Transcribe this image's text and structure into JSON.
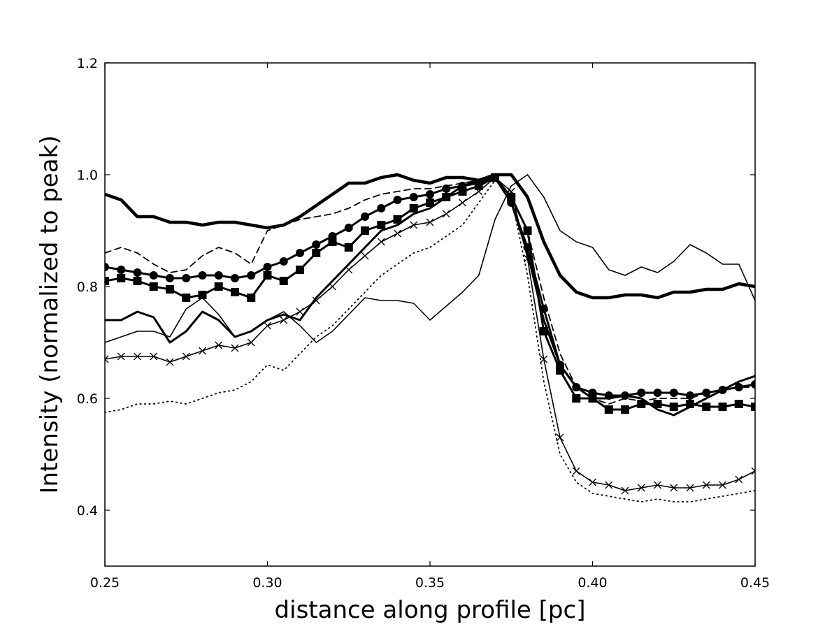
{
  "chart_data": {
    "type": "line",
    "title": "",
    "xlabel": "distance along profile [pc]",
    "ylabel": "Intensity (normalized to peak)",
    "xlim": [
      0.25,
      0.45
    ],
    "ylim": [
      0.3,
      1.2
    ],
    "xticks": [
      "0.25",
      "0.30",
      "0.35",
      "0.40",
      "0.45"
    ],
    "yticks": [
      "0.4",
      "0.6",
      "0.8",
      "1.0",
      "1.2"
    ],
    "grid": false,
    "legend": "none",
    "colors": {
      "line": "#000000",
      "background": "#ffffff"
    },
    "series": [
      {
        "style": "thick-solid",
        "x": [
          0.25,
          0.255,
          0.26,
          0.265,
          0.27,
          0.275,
          0.28,
          0.285,
          0.29,
          0.295,
          0.3,
          0.305,
          0.31,
          0.315,
          0.32,
          0.325,
          0.33,
          0.335,
          0.34,
          0.345,
          0.35,
          0.355,
          0.36,
          0.365,
          0.37,
          0.375,
          0.38,
          0.385,
          0.39,
          0.395,
          0.4,
          0.405,
          0.41,
          0.415,
          0.42,
          0.425,
          0.43,
          0.435,
          0.44,
          0.445,
          0.45
        ],
        "y": [
          0.965,
          0.955,
          0.925,
          0.925,
          0.915,
          0.915,
          0.91,
          0.915,
          0.915,
          0.91,
          0.905,
          0.91,
          0.925,
          0.945,
          0.965,
          0.985,
          0.985,
          0.995,
          1.0,
          0.99,
          0.985,
          0.995,
          0.995,
          0.99,
          1.0,
          1.0,
          0.96,
          0.88,
          0.82,
          0.79,
          0.78,
          0.78,
          0.785,
          0.785,
          0.78,
          0.79,
          0.79,
          0.795,
          0.795,
          0.805,
          0.8
        ]
      },
      {
        "style": "dashed",
        "x": [
          0.25,
          0.255,
          0.26,
          0.265,
          0.27,
          0.275,
          0.28,
          0.285,
          0.29,
          0.295,
          0.3,
          0.305,
          0.31,
          0.315,
          0.32,
          0.325,
          0.33,
          0.335,
          0.34,
          0.345,
          0.35,
          0.355,
          0.36,
          0.365,
          0.37,
          0.375,
          0.38,
          0.385,
          0.39,
          0.395,
          0.4,
          0.405,
          0.41,
          0.415,
          0.42,
          0.425,
          0.43,
          0.435,
          0.44,
          0.445,
          0.45
        ],
        "y": [
          0.86,
          0.87,
          0.86,
          0.84,
          0.825,
          0.83,
          0.855,
          0.87,
          0.86,
          0.84,
          0.9,
          0.91,
          0.92,
          0.925,
          0.93,
          0.94,
          0.955,
          0.965,
          0.97,
          0.975,
          0.975,
          0.98,
          0.985,
          0.99,
          0.995,
          0.96,
          0.9,
          0.78,
          0.68,
          0.62,
          0.6,
          0.59,
          0.6,
          0.595,
          0.6,
          0.6,
          0.6,
          0.61,
          0.615,
          0.62,
          0.62
        ]
      },
      {
        "style": "circle-markers",
        "x": [
          0.25,
          0.255,
          0.26,
          0.265,
          0.27,
          0.275,
          0.28,
          0.285,
          0.29,
          0.295,
          0.3,
          0.305,
          0.31,
          0.315,
          0.32,
          0.325,
          0.33,
          0.335,
          0.34,
          0.345,
          0.35,
          0.355,
          0.36,
          0.365,
          0.37,
          0.375,
          0.38,
          0.385,
          0.39,
          0.395,
          0.4,
          0.405,
          0.41,
          0.415,
          0.42,
          0.425,
          0.43,
          0.435,
          0.44,
          0.445,
          0.45
        ],
        "y": [
          0.835,
          0.83,
          0.825,
          0.82,
          0.815,
          0.815,
          0.82,
          0.82,
          0.815,
          0.82,
          0.835,
          0.845,
          0.86,
          0.875,
          0.89,
          0.905,
          0.925,
          0.94,
          0.955,
          0.96,
          0.965,
          0.975,
          0.98,
          0.985,
          0.995,
          0.95,
          0.87,
          0.76,
          0.66,
          0.62,
          0.61,
          0.605,
          0.605,
          0.61,
          0.61,
          0.61,
          0.605,
          0.61,
          0.615,
          0.62,
          0.625
        ]
      },
      {
        "style": "square-markers",
        "x": [
          0.25,
          0.255,
          0.26,
          0.265,
          0.27,
          0.275,
          0.28,
          0.285,
          0.29,
          0.295,
          0.3,
          0.305,
          0.31,
          0.315,
          0.32,
          0.325,
          0.33,
          0.335,
          0.34,
          0.345,
          0.35,
          0.355,
          0.36,
          0.365,
          0.37,
          0.375,
          0.38,
          0.385,
          0.39,
          0.395,
          0.4,
          0.405,
          0.41,
          0.415,
          0.42,
          0.425,
          0.43,
          0.435,
          0.44,
          0.445,
          0.45
        ],
        "y": [
          0.81,
          0.815,
          0.81,
          0.8,
          0.795,
          0.78,
          0.785,
          0.8,
          0.79,
          0.78,
          0.82,
          0.81,
          0.83,
          0.86,
          0.88,
          0.87,
          0.9,
          0.91,
          0.92,
          0.94,
          0.95,
          0.96,
          0.97,
          0.98,
          0.995,
          0.96,
          0.9,
          0.72,
          0.65,
          0.6,
          0.6,
          0.58,
          0.58,
          0.59,
          0.59,
          0.585,
          0.59,
          0.585,
          0.585,
          0.59,
          0.585
        ]
      },
      {
        "style": "medium-solid",
        "x": [
          0.25,
          0.255,
          0.26,
          0.265,
          0.27,
          0.275,
          0.28,
          0.285,
          0.29,
          0.295,
          0.3,
          0.305,
          0.31,
          0.315,
          0.32,
          0.325,
          0.33,
          0.335,
          0.34,
          0.345,
          0.35,
          0.355,
          0.36,
          0.365,
          0.37,
          0.375,
          0.38,
          0.385,
          0.39,
          0.395,
          0.4,
          0.405,
          0.41,
          0.415,
          0.42,
          0.425,
          0.43,
          0.435,
          0.44,
          0.445,
          0.45
        ],
        "y": [
          0.74,
          0.74,
          0.755,
          0.745,
          0.7,
          0.72,
          0.755,
          0.74,
          0.71,
          0.72,
          0.74,
          0.75,
          0.74,
          0.78,
          0.81,
          0.84,
          0.87,
          0.9,
          0.91,
          0.93,
          0.94,
          0.96,
          0.98,
          0.99,
          0.995,
          0.95,
          0.86,
          0.74,
          0.66,
          0.62,
          0.6,
          0.6,
          0.605,
          0.6,
          0.58,
          0.57,
          0.585,
          0.6,
          0.615,
          0.63,
          0.64
        ]
      },
      {
        "style": "thin-solid",
        "x": [
          0.25,
          0.255,
          0.26,
          0.265,
          0.27,
          0.275,
          0.28,
          0.285,
          0.29,
          0.295,
          0.3,
          0.305,
          0.31,
          0.315,
          0.32,
          0.325,
          0.33,
          0.335,
          0.34,
          0.345,
          0.35,
          0.355,
          0.36,
          0.365,
          0.37,
          0.375,
          0.38,
          0.385,
          0.39,
          0.395,
          0.4,
          0.405,
          0.41,
          0.415,
          0.42,
          0.425,
          0.43,
          0.435,
          0.44,
          0.445,
          0.45
        ],
        "y": [
          0.7,
          0.71,
          0.72,
          0.72,
          0.71,
          0.76,
          0.78,
          0.75,
          0.71,
          0.72,
          0.74,
          0.755,
          0.73,
          0.7,
          0.72,
          0.75,
          0.78,
          0.775,
          0.775,
          0.77,
          0.74,
          0.765,
          0.79,
          0.82,
          0.92,
          0.98,
          1.0,
          0.96,
          0.9,
          0.88,
          0.87,
          0.83,
          0.82,
          0.835,
          0.825,
          0.845,
          0.875,
          0.86,
          0.84,
          0.84,
          0.775
        ]
      },
      {
        "style": "x-markers",
        "x": [
          0.25,
          0.255,
          0.26,
          0.265,
          0.27,
          0.275,
          0.28,
          0.285,
          0.29,
          0.295,
          0.3,
          0.305,
          0.31,
          0.315,
          0.32,
          0.325,
          0.33,
          0.335,
          0.34,
          0.345,
          0.35,
          0.355,
          0.36,
          0.365,
          0.37,
          0.375,
          0.38,
          0.385,
          0.39,
          0.395,
          0.4,
          0.405,
          0.41,
          0.415,
          0.42,
          0.425,
          0.43,
          0.435,
          0.44,
          0.445,
          0.45
        ],
        "y": [
          0.67,
          0.675,
          0.675,
          0.675,
          0.665,
          0.675,
          0.685,
          0.695,
          0.69,
          0.7,
          0.73,
          0.74,
          0.755,
          0.775,
          0.8,
          0.83,
          0.855,
          0.88,
          0.895,
          0.91,
          0.915,
          0.93,
          0.95,
          0.97,
          0.995,
          0.97,
          0.85,
          0.67,
          0.53,
          0.47,
          0.45,
          0.445,
          0.435,
          0.44,
          0.445,
          0.44,
          0.44,
          0.445,
          0.445,
          0.455,
          0.47
        ]
      },
      {
        "style": "dotted",
        "x": [
          0.25,
          0.255,
          0.26,
          0.265,
          0.27,
          0.275,
          0.28,
          0.285,
          0.29,
          0.295,
          0.3,
          0.305,
          0.31,
          0.315,
          0.32,
          0.325,
          0.33,
          0.335,
          0.34,
          0.345,
          0.35,
          0.355,
          0.36,
          0.365,
          0.37,
          0.375,
          0.38,
          0.385,
          0.39,
          0.395,
          0.4,
          0.405,
          0.41,
          0.415,
          0.42,
          0.425,
          0.43,
          0.435,
          0.44,
          0.445,
          0.45
        ],
        "y": [
          0.575,
          0.58,
          0.59,
          0.59,
          0.595,
          0.59,
          0.6,
          0.61,
          0.615,
          0.63,
          0.66,
          0.65,
          0.68,
          0.71,
          0.73,
          0.76,
          0.79,
          0.82,
          0.84,
          0.86,
          0.87,
          0.89,
          0.91,
          0.95,
          0.99,
          0.96,
          0.82,
          0.63,
          0.5,
          0.45,
          0.43,
          0.425,
          0.42,
          0.415,
          0.42,
          0.415,
          0.415,
          0.42,
          0.425,
          0.43,
          0.435
        ]
      }
    ]
  }
}
